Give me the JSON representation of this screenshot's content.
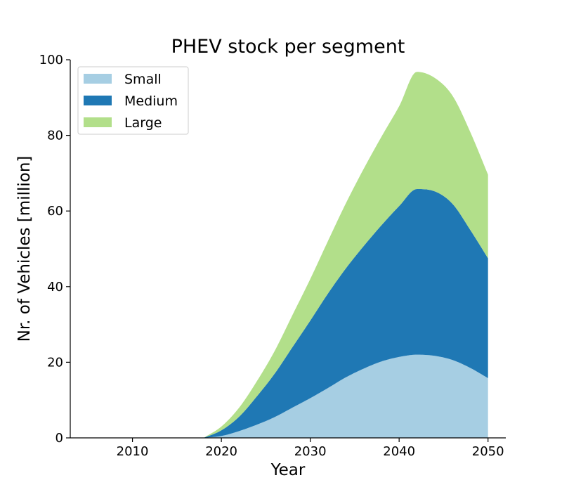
{
  "chart_data": {
    "type": "area",
    "stacked": true,
    "title": "PHEV stock per segment",
    "xlabel": "Year",
    "ylabel": "Nr. of Vehicles [million]",
    "xlim": [
      2003,
      2052
    ],
    "ylim": [
      0,
      100
    ],
    "xticks": [
      2010,
      2020,
      2030,
      2040,
      2050
    ],
    "yticks": [
      0,
      20,
      40,
      60,
      80,
      100
    ],
    "legend_position": "top-left",
    "x": [
      2018,
      2020,
      2022,
      2024,
      2026,
      2028,
      2030,
      2032,
      2034,
      2036,
      2038,
      2040,
      2042,
      2044,
      2046,
      2048,
      2050
    ],
    "series": [
      {
        "name": "Small",
        "color": "#a6cee3",
        "values": [
          0,
          0.5,
          1.8,
          3.5,
          5.5,
          8.0,
          10.5,
          13.2,
          16.0,
          18.3,
          20.2,
          21.4,
          22.0,
          21.7,
          20.6,
          18.5,
          15.8
        ]
      },
      {
        "name": "Medium",
        "color": "#1f78b4",
        "values": [
          0,
          1.5,
          3.8,
          7.5,
          11.5,
          16.0,
          20.5,
          25.0,
          28.8,
          32.4,
          36.0,
          39.9,
          43.8,
          43.5,
          41.3,
          36.5,
          31.7
        ]
      },
      {
        "name": "Large",
        "color": "#b2df8a",
        "values": [
          0,
          1.0,
          2.4,
          4.0,
          6.0,
          8.5,
          11.0,
          13.9,
          17.2,
          20.4,
          23.4,
          26.4,
          31.0,
          30.0,
          28.6,
          25.9,
          22.1
        ]
      }
    ]
  }
}
